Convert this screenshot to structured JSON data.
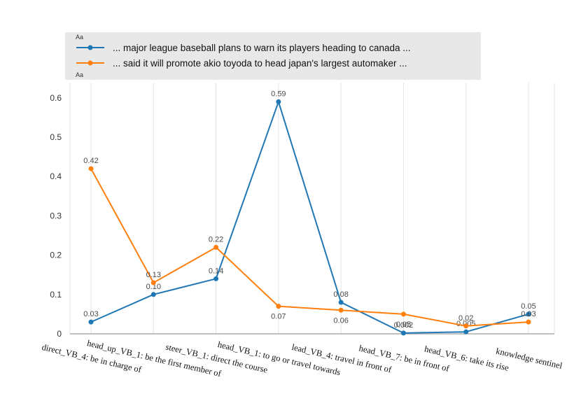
{
  "legend": {
    "font_sample_top": "Aa",
    "font_sample_bottom": "Aa",
    "items": [
      {
        "label": "... major league baseball plans to warn its players heading to canada ...",
        "color": "#1f77b4"
      },
      {
        "label": "... said it will promote akio toyoda to head japan's largest automaker ...",
        "color": "#ff7f0e"
      }
    ]
  },
  "chart_data": {
    "type": "line",
    "title": "",
    "xlabel": "",
    "ylabel": "",
    "grid": "vertical",
    "legend_position": "top",
    "ylim": [
      0,
      0.62
    ],
    "ytick_values": [
      0,
      0.1,
      0.2,
      0.3,
      0.4,
      0.5,
      0.6
    ],
    "ytick_labels": [
      "0",
      "0.1",
      "0.2",
      "0.3",
      "0.4",
      "0.5",
      "0.6"
    ],
    "categories": [
      "direct_VB_4: be in charge of",
      "head_up_VB_1: be the first member of",
      "steer_VB_1: direct the course",
      "head_VB_1: to go or travel towards",
      "lead_VB_4: travel in front of",
      "head_VB_7: be in front of",
      "head_VB_6: take its rise",
      "knowledge sentinel"
    ],
    "series": [
      {
        "name": "... major league baseball plans to warn its players heading to canada ...",
        "color": "#1f77b4",
        "values": [
          0.03,
          0.1,
          0.14,
          0.59,
          0.08,
          0.002,
          0.005,
          0.05
        ],
        "point_labels": [
          "0.03",
          "0.10",
          "0.14",
          "0.59",
          "0.08",
          "0.002",
          "0.005",
          "0.05"
        ],
        "label_pos": [
          "above",
          "above",
          "above",
          "above",
          "above",
          "above",
          "above",
          "above"
        ]
      },
      {
        "name": "... said it will promote akio toyoda to head japan's largest automaker ...",
        "color": "#ff7f0e",
        "values": [
          0.42,
          0.13,
          0.22,
          0.07,
          0.06,
          0.05,
          0.02,
          0.03
        ],
        "point_labels": [
          "0.42",
          "0.13",
          "0.22",
          "0.07",
          "0.06",
          "0.05",
          "0.02",
          "0.03"
        ],
        "label_pos": [
          "above",
          "above",
          "above",
          "below",
          "below",
          "below",
          "above",
          "above"
        ]
      }
    ]
  }
}
